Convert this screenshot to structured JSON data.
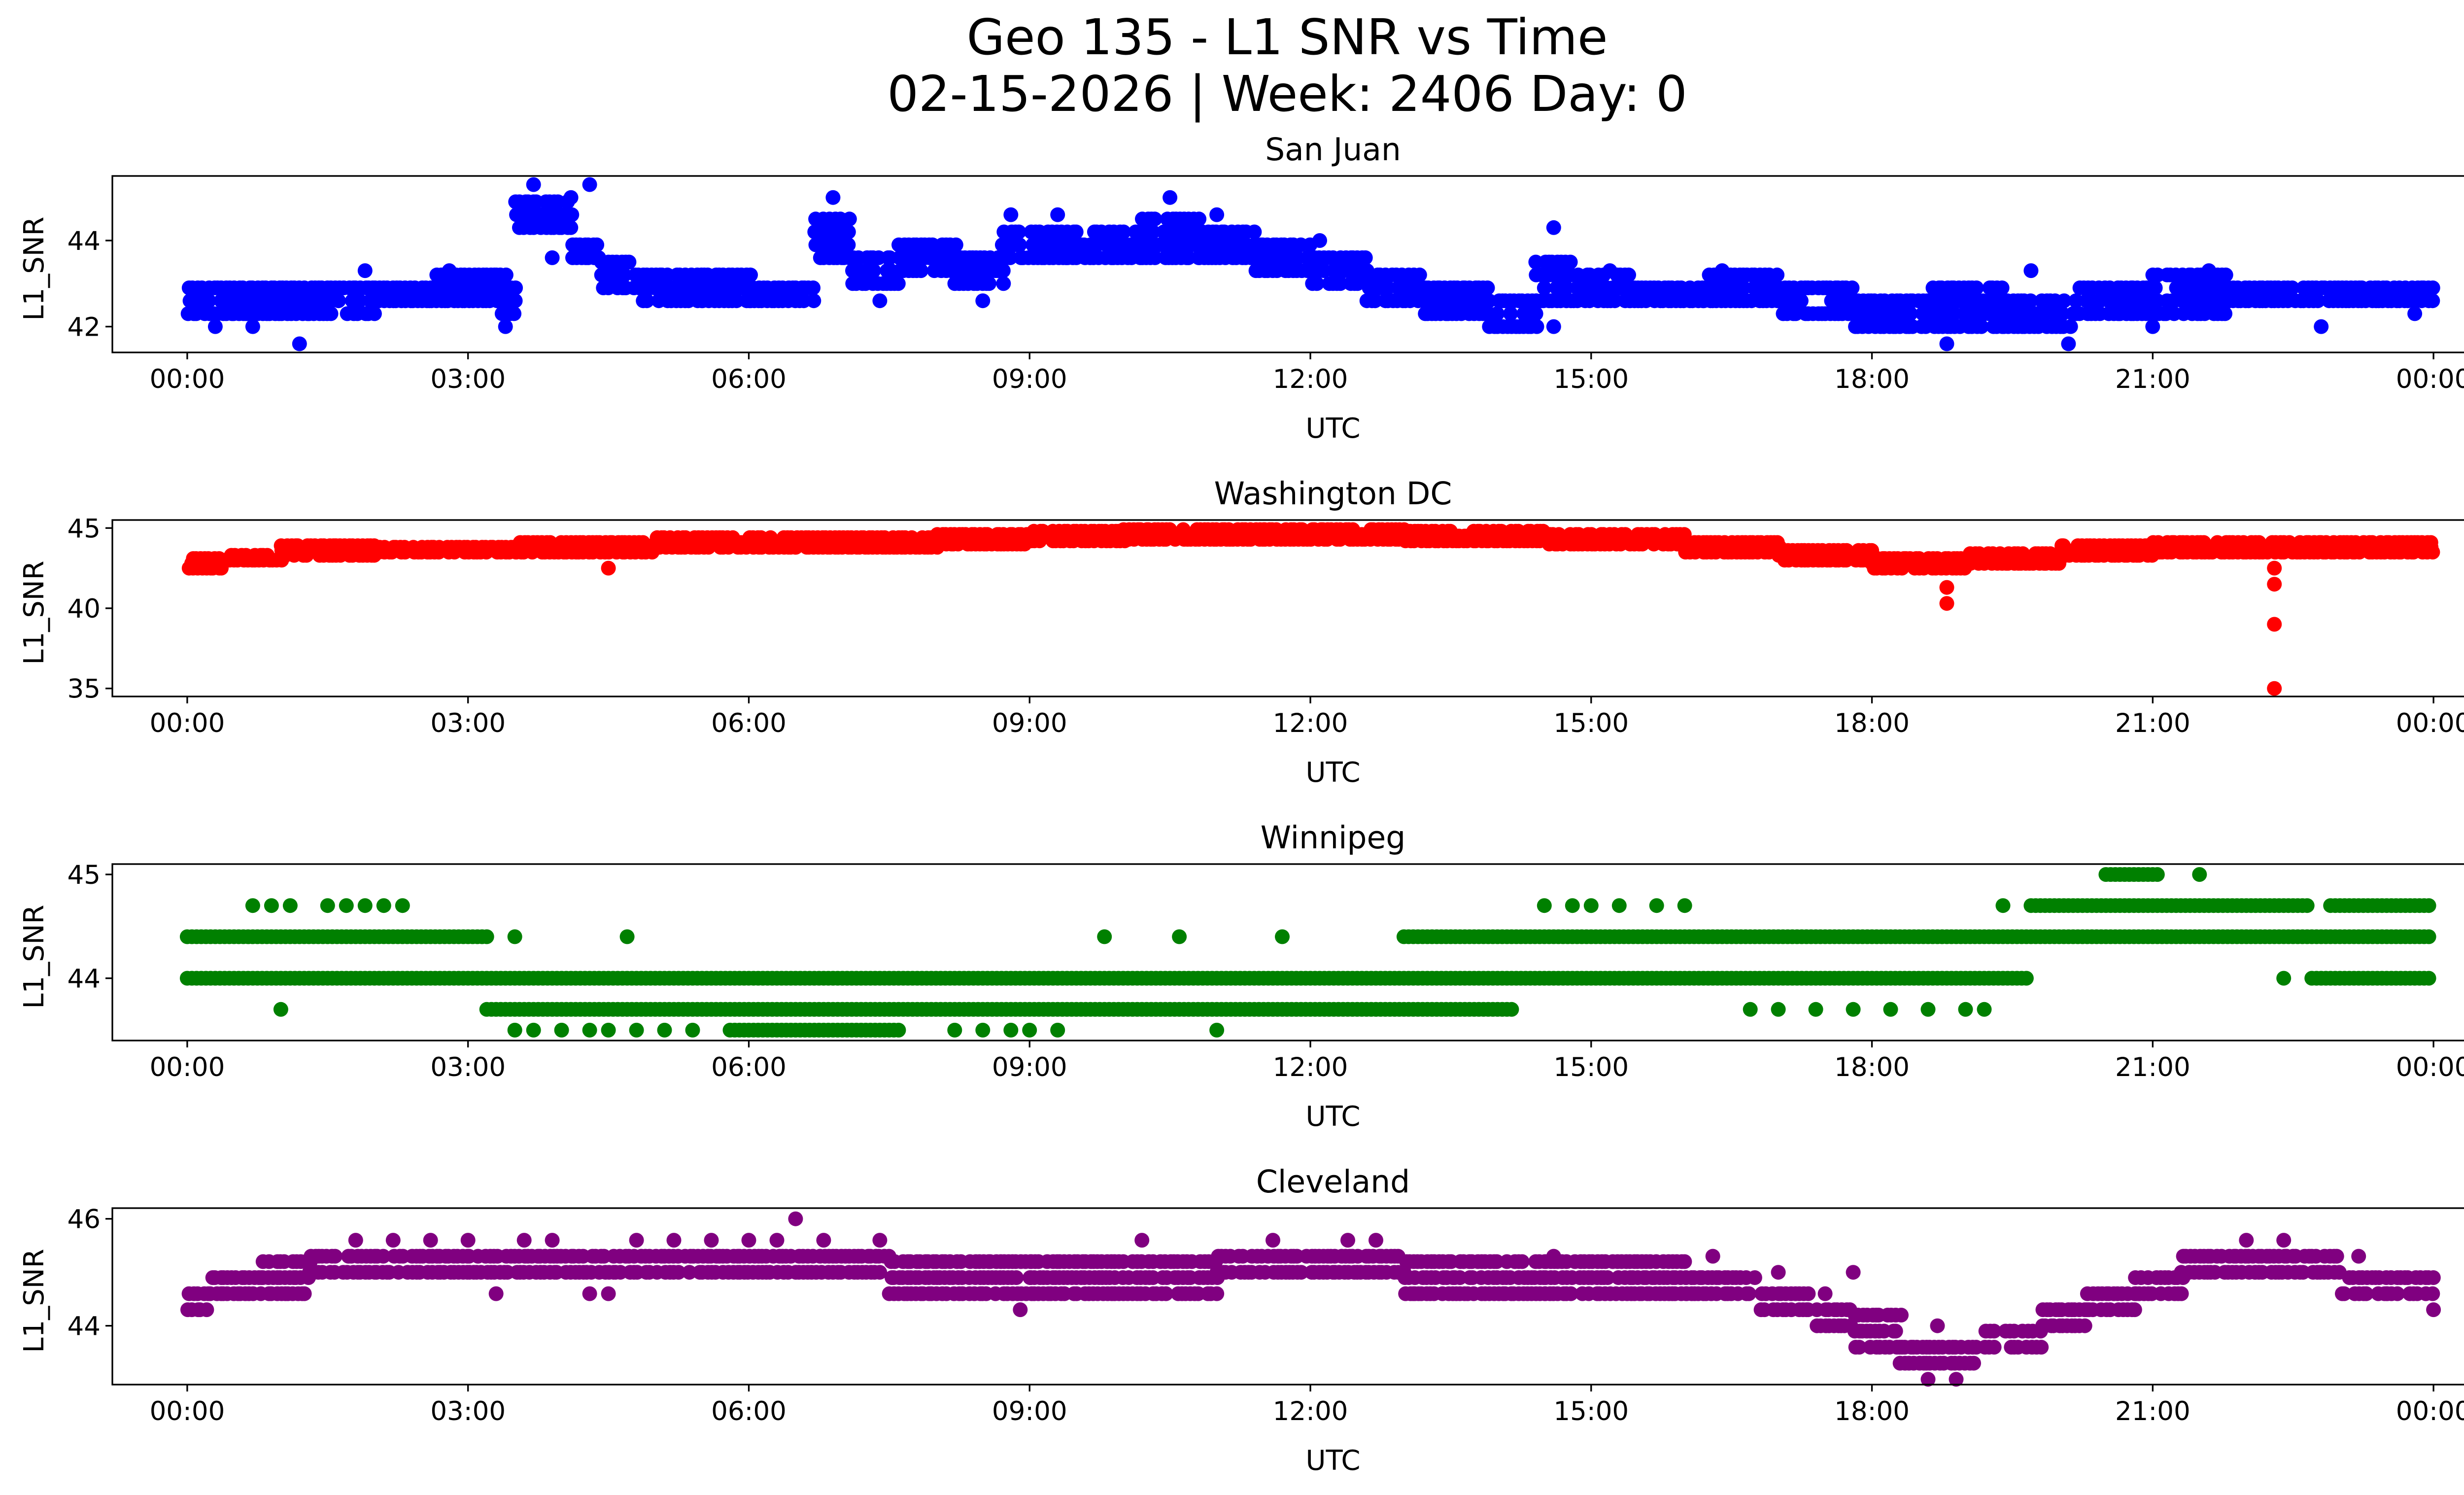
{
  "figure": {
    "title_line1": "Geo 135 - L1 SNR vs Time",
    "title_line2": "02-15-2026 | Week: 2406 Day: 0"
  },
  "chart_data": [
    {
      "type": "scatter",
      "title": "San Juan",
      "xlabel": "UTC",
      "ylabel": "L1_SNR",
      "color": "#0000ff",
      "xlim": [
        -0.8,
        25.3
      ],
      "ylim": [
        41.4,
        45.5
      ],
      "xticks": [
        "00:00",
        "03:00",
        "06:00",
        "09:00",
        "12:00",
        "15:00",
        "18:00",
        "21:00",
        "00:00"
      ],
      "yticks": [
        42,
        44
      ],
      "x_unit": "hours since 00:00 UTC",
      "bands": [
        [
          0.0,
          0.6,
          42.3,
          43.0
        ],
        [
          0.6,
          1.3,
          42.3,
          43.0
        ],
        [
          1.3,
          2.0,
          42.3,
          43.0
        ],
        [
          2.0,
          2.6,
          42.6,
          43.0
        ],
        [
          2.6,
          3.3,
          42.6,
          43.3
        ],
        [
          3.3,
          3.5,
          42.3,
          43.3
        ],
        [
          3.5,
          4.1,
          44.3,
          45.0
        ],
        [
          4.1,
          4.4,
          43.6,
          44.0
        ],
        [
          4.4,
          4.8,
          42.9,
          43.6
        ],
        [
          4.8,
          5.5,
          42.6,
          43.3
        ],
        [
          5.5,
          6.0,
          42.6,
          43.3
        ],
        [
          6.0,
          6.7,
          42.6,
          43.0
        ],
        [
          6.7,
          7.1,
          43.6,
          44.6
        ],
        [
          7.1,
          7.6,
          43.0,
          43.6
        ],
        [
          7.6,
          8.2,
          43.3,
          44.0
        ],
        [
          8.2,
          8.7,
          43.0,
          43.6
        ],
        [
          8.7,
          9.4,
          43.6,
          44.3
        ],
        [
          9.4,
          10.2,
          43.6,
          44.3
        ],
        [
          10.2,
          10.8,
          43.6,
          44.6
        ],
        [
          10.8,
          11.4,
          43.6,
          44.3
        ],
        [
          11.4,
          12.0,
          43.3,
          44.0
        ],
        [
          12.0,
          12.6,
          43.0,
          43.6
        ],
        [
          12.6,
          13.2,
          42.6,
          43.3
        ],
        [
          13.2,
          13.9,
          42.3,
          43.0
        ],
        [
          13.9,
          14.4,
          42.0,
          42.6
        ],
        [
          14.4,
          14.8,
          42.6,
          43.6
        ],
        [
          14.8,
          15.4,
          42.6,
          43.3
        ],
        [
          15.4,
          16.2,
          42.6,
          43.0
        ],
        [
          16.2,
          17.0,
          42.6,
          43.3
        ],
        [
          17.0,
          17.8,
          42.3,
          43.0
        ],
        [
          17.8,
          18.6,
          42.0,
          42.6
        ],
        [
          18.6,
          19.4,
          42.0,
          43.0
        ],
        [
          19.4,
          20.2,
          42.0,
          42.6
        ],
        [
          20.2,
          21.0,
          42.3,
          43.0
        ],
        [
          21.0,
          21.8,
          42.3,
          43.3
        ],
        [
          21.8,
          22.6,
          42.6,
          43.0
        ],
        [
          22.6,
          23.4,
          42.6,
          43.0
        ],
        [
          23.4,
          24.0,
          42.6,
          43.0
        ]
      ],
      "points": [
        [
          0.3,
          42.0
        ],
        [
          0.7,
          42.0
        ],
        [
          1.2,
          41.6
        ],
        [
          1.9,
          43.3
        ],
        [
          2.8,
          43.3
        ],
        [
          3.4,
          42.0
        ],
        [
          3.7,
          45.3
        ],
        [
          3.9,
          43.6
        ],
        [
          4.3,
          45.3
        ],
        [
          4.1,
          45.0
        ],
        [
          6.9,
          45.0
        ],
        [
          7.4,
          42.6
        ],
        [
          8.5,
          42.6
        ],
        [
          8.8,
          44.6
        ],
        [
          9.3,
          44.6
        ],
        [
          10.5,
          45.0
        ],
        [
          11.0,
          44.6
        ],
        [
          12.1,
          44.0
        ],
        [
          14.6,
          44.3
        ],
        [
          14.6,
          42.0
        ],
        [
          15.2,
          43.3
        ],
        [
          16.4,
          43.3
        ],
        [
          18.4,
          42.0
        ],
        [
          18.8,
          41.6
        ],
        [
          19.7,
          43.3
        ],
        [
          20.1,
          41.6
        ],
        [
          21.0,
          42.0
        ],
        [
          21.6,
          43.3
        ],
        [
          22.8,
          42.0
        ],
        [
          23.8,
          42.3
        ]
      ]
    },
    {
      "type": "scatter",
      "title": "Washington DC",
      "xlabel": "UTC",
      "ylabel": "L1_SNR",
      "color": "#ff0000",
      "xlim": [
        -0.8,
        25.3
      ],
      "ylim": [
        34.5,
        45.5
      ],
      "xticks": [
        "00:00",
        "03:00",
        "06:00",
        "09:00",
        "12:00",
        "15:00",
        "18:00",
        "21:00",
        "00:00"
      ],
      "yticks": [
        35,
        40,
        45
      ],
      "x_unit": "hours since 00:00 UTC",
      "bands": [
        [
          0.0,
          0.4,
          42.5,
          43.3
        ],
        [
          0.4,
          1.0,
          43.0,
          43.5
        ],
        [
          1.0,
          2.0,
          43.3,
          44.0
        ],
        [
          2.0,
          3.5,
          43.5,
          44.0
        ],
        [
          3.5,
          5.0,
          43.5,
          44.2
        ],
        [
          5.0,
          6.5,
          43.8,
          44.5
        ],
        [
          6.5,
          8.0,
          43.8,
          44.5
        ],
        [
          8.0,
          9.0,
          44.0,
          44.8
        ],
        [
          9.0,
          10.0,
          44.2,
          45.0
        ],
        [
          10.0,
          11.5,
          44.3,
          45.0
        ],
        [
          11.5,
          13.0,
          44.3,
          45.0
        ],
        [
          13.0,
          14.5,
          44.2,
          44.8
        ],
        [
          14.5,
          16.0,
          44.0,
          44.8
        ],
        [
          16.0,
          17.0,
          43.5,
          44.3
        ],
        [
          17.0,
          18.0,
          43.0,
          43.8
        ],
        [
          18.0,
          19.0,
          42.5,
          43.3
        ],
        [
          19.0,
          20.0,
          42.8,
          43.5
        ],
        [
          20.0,
          21.0,
          43.3,
          44.0
        ],
        [
          21.0,
          22.3,
          43.5,
          44.2
        ],
        [
          22.3,
          24.0,
          43.5,
          44.2
        ]
      ],
      "points": [
        [
          4.5,
          42.5
        ],
        [
          18.8,
          41.3
        ],
        [
          18.8,
          40.3
        ],
        [
          22.3,
          41.5
        ],
        [
          22.3,
          39.0
        ],
        [
          22.3,
          35.0
        ],
        [
          22.3,
          42.5
        ]
      ]
    },
    {
      "type": "scatter",
      "title": "Winnipeg",
      "xlabel": "UTC",
      "ylabel": "L1_SNR",
      "color": "#008000",
      "xlim": [
        -0.8,
        25.3
      ],
      "ylim": [
        43.4,
        45.1
      ],
      "xticks": [
        "00:00",
        "03:00",
        "06:00",
        "09:00",
        "12:00",
        "15:00",
        "18:00",
        "21:00",
        "00:00"
      ],
      "yticks": [
        44,
        45
      ],
      "x_unit": "hours since 00:00 UTC",
      "rows": [
        {
          "y": 44.4,
          "from": 0.0,
          "to": 3.2
        },
        {
          "y": 44.0,
          "from": 0.0,
          "to": 19.7
        },
        {
          "y": 43.7,
          "from": 3.2,
          "to": 14.2
        },
        {
          "y": 43.5,
          "from": 5.8,
          "to": 7.6
        },
        {
          "y": 44.4,
          "from": 13.0,
          "to": 24.0
        },
        {
          "y": 44.7,
          "from": 19.7,
          "to": 22.7
        },
        {
          "y": 44.0,
          "from": 22.7,
          "to": 24.0
        },
        {
          "y": 44.7,
          "from": 22.9,
          "to": 24.0
        },
        {
          "y": 45.0,
          "from": 20.5,
          "to": 21.1
        }
      ],
      "points": [
        [
          0.7,
          44.7
        ],
        [
          0.9,
          44.7
        ],
        [
          1.1,
          44.7
        ],
        [
          1.5,
          44.7
        ],
        [
          1.7,
          44.7
        ],
        [
          1.9,
          44.7
        ],
        [
          2.1,
          44.7
        ],
        [
          2.3,
          44.7
        ],
        [
          1.0,
          43.7
        ],
        [
          3.5,
          44.4
        ],
        [
          3.5,
          43.5
        ],
        [
          3.7,
          43.5
        ],
        [
          4.0,
          43.5
        ],
        [
          4.3,
          43.5
        ],
        [
          4.5,
          43.5
        ],
        [
          4.8,
          43.5
        ],
        [
          5.1,
          43.5
        ],
        [
          5.4,
          43.5
        ],
        [
          8.2,
          43.5
        ],
        [
          8.5,
          43.5
        ],
        [
          8.8,
          43.5
        ],
        [
          9.0,
          43.5
        ],
        [
          9.3,
          43.5
        ],
        [
          9.8,
          44.4
        ],
        [
          10.6,
          44.4
        ],
        [
          11.0,
          43.5
        ],
        [
          11.7,
          44.4
        ],
        [
          4.7,
          44.4
        ],
        [
          14.5,
          44.7
        ],
        [
          14.8,
          44.7
        ],
        [
          15.0,
          44.7
        ],
        [
          15.3,
          44.7
        ],
        [
          15.7,
          44.7
        ],
        [
          16.0,
          44.7
        ],
        [
          16.7,
          43.7
        ],
        [
          17.0,
          43.7
        ],
        [
          17.4,
          43.7
        ],
        [
          17.8,
          43.7
        ],
        [
          18.2,
          43.7
        ],
        [
          18.6,
          43.7
        ],
        [
          19.0,
          43.7
        ],
        [
          19.2,
          43.7
        ],
        [
          19.4,
          44.7
        ],
        [
          21.5,
          45.0
        ],
        [
          22.4,
          44.0
        ]
      ]
    },
    {
      "type": "scatter",
      "title": "Cleveland",
      "xlabel": "UTC",
      "ylabel": "L1_SNR",
      "color": "#800080",
      "xlim": [
        -0.8,
        25.3
      ],
      "ylim": [
        42.9,
        46.2
      ],
      "xticks": [
        "00:00",
        "03:00",
        "06:00",
        "09:00",
        "12:00",
        "15:00",
        "18:00",
        "21:00",
        "00:00"
      ],
      "yticks": [
        44,
        46
      ],
      "x_unit": "hours since 00:00 UTC",
      "bands": [
        [
          0.0,
          0.2,
          44.3,
          44.6
        ],
        [
          0.2,
          0.8,
          44.6,
          45.0
        ],
        [
          0.8,
          1.3,
          44.6,
          45.3
        ],
        [
          1.3,
          3.0,
          45.0,
          45.3
        ],
        [
          3.0,
          5.0,
          45.0,
          45.3
        ],
        [
          5.0,
          7.5,
          45.0,
          45.3
        ],
        [
          7.5,
          9.0,
          44.6,
          45.3
        ],
        [
          9.0,
          11.0,
          44.6,
          45.3
        ],
        [
          11.0,
          13.0,
          45.0,
          45.3
        ],
        [
          13.0,
          14.5,
          44.6,
          45.3
        ],
        [
          14.5,
          16.0,
          44.6,
          45.3
        ],
        [
          16.0,
          16.8,
          44.6,
          45.0
        ],
        [
          16.8,
          17.3,
          44.3,
          44.6
        ],
        [
          17.3,
          17.8,
          44.0,
          44.3
        ],
        [
          17.8,
          18.3,
          43.6,
          44.3
        ],
        [
          18.3,
          19.2,
          43.3,
          43.6
        ],
        [
          19.2,
          19.8,
          43.6,
          44.0
        ],
        [
          19.8,
          20.3,
          44.0,
          44.3
        ],
        [
          20.3,
          20.8,
          44.3,
          44.6
        ],
        [
          20.8,
          21.3,
          44.6,
          45.0
        ],
        [
          21.3,
          23.0,
          45.0,
          45.3
        ],
        [
          23.0,
          24.0,
          44.6,
          45.0
        ]
      ],
      "points": [
        [
          1.8,
          45.6
        ],
        [
          2.2,
          45.6
        ],
        [
          2.6,
          45.6
        ],
        [
          3.0,
          45.6
        ],
        [
          3.3,
          44.6
        ],
        [
          3.6,
          45.6
        ],
        [
          3.9,
          45.6
        ],
        [
          4.3,
          44.6
        ],
        [
          4.5,
          44.6
        ],
        [
          4.8,
          45.6
        ],
        [
          5.2,
          45.6
        ],
        [
          5.6,
          45.6
        ],
        [
          6.0,
          45.6
        ],
        [
          6.3,
          45.6
        ],
        [
          6.5,
          46.0
        ],
        [
          6.8,
          45.6
        ],
        [
          7.4,
          45.6
        ],
        [
          8.9,
          44.3
        ],
        [
          10.2,
          45.6
        ],
        [
          11.6,
          45.6
        ],
        [
          12.4,
          45.6
        ],
        [
          12.7,
          45.6
        ],
        [
          13.1,
          44.6
        ],
        [
          14.6,
          45.3
        ],
        [
          16.3,
          45.3
        ],
        [
          17.5,
          44.6
        ],
        [
          17.0,
          45.0
        ],
        [
          17.8,
          45.0
        ],
        [
          18.6,
          43.0
        ],
        [
          18.9,
          43.0
        ],
        [
          18.7,
          44.0
        ],
        [
          22.0,
          45.6
        ],
        [
          22.4,
          45.6
        ],
        [
          23.2,
          45.3
        ],
        [
          23.5,
          44.6
        ],
        [
          24.0,
          44.3
        ]
      ]
    }
  ]
}
